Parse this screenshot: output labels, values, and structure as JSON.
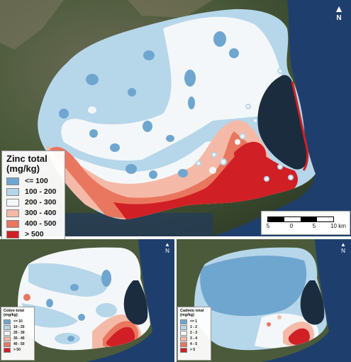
{
  "maps": {
    "zinc": {
      "legend_title": "Zinc total (mg/kg)",
      "classes": [
        {
          "label": "<= 100",
          "color": "#6fa6d0"
        },
        {
          "label": "100 - 200",
          "color": "#b6d6ea"
        },
        {
          "label": "200 - 300",
          "color": "#f4f7f9"
        },
        {
          "label": "300 - 400",
          "color": "#f5b9a8"
        },
        {
          "label": "400 - 500",
          "color": "#e9765f"
        },
        {
          "label": "> 500",
          "color": "#d01f25"
        }
      ],
      "scalebar": {
        "ticks": [
          "5",
          "0",
          "5",
          "10 km"
        ]
      },
      "north": "N"
    },
    "copper": {
      "legend_title": "Cobre total (mg/kg)",
      "classes": [
        {
          "label": "<= 10",
          "color": "#6fa6d0"
        },
        {
          "label": "10 - 20",
          "color": "#b6d6ea"
        },
        {
          "label": "20 - 30",
          "color": "#f4f7f9"
        },
        {
          "label": "30 - 40",
          "color": "#f5b9a8"
        },
        {
          "label": "40 - 50",
          "color": "#e9765f"
        },
        {
          "label": "> 50",
          "color": "#d01f25"
        }
      ],
      "north": "N"
    },
    "cadmium": {
      "legend_title": "Cadmio total (mg/kg)",
      "classes": [
        {
          "label": "<= 1",
          "color": "#6fa6d0"
        },
        {
          "label": "1 - 2",
          "color": "#b6d6ea"
        },
        {
          "label": "2 - 3",
          "color": "#f4f7f9"
        },
        {
          "label": "3 - 4",
          "color": "#f5b9a8"
        },
        {
          "label": "4 - 5",
          "color": "#e9765f"
        },
        {
          "label": "> 5",
          "color": "#d01f25"
        }
      ],
      "north": "N"
    }
  },
  "colors": {
    "terrain": "#4a5a3a",
    "sea": "#1e3f6e",
    "lagoon": "#1a2c3e"
  }
}
